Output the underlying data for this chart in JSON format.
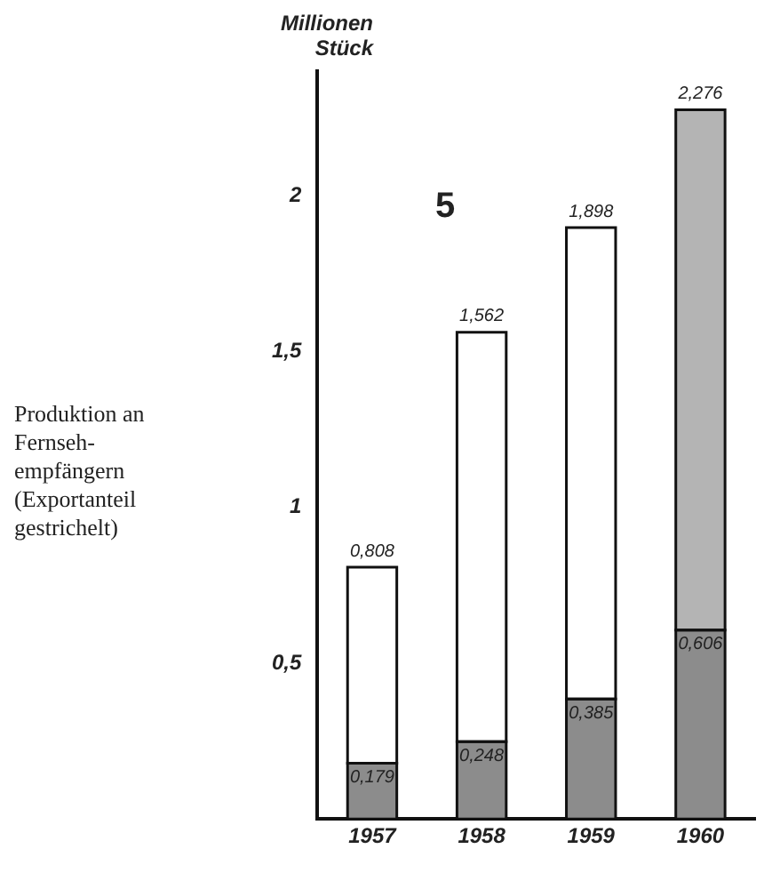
{
  "chart_data": {
    "type": "bar",
    "stacked": true,
    "ylabel": "Millionen Stück",
    "categories": [
      "1957",
      "1958",
      "1959",
      "1960"
    ],
    "series": [
      {
        "values": [
          0.179,
          0.248,
          0.385,
          0.606
        ],
        "color": "#8c8c8c",
        "value_labels": [
          "0,179",
          "0,248",
          "0,385",
          "0,606"
        ]
      },
      {
        "values": [
          0.629,
          1.314,
          1.513,
          1.67
        ],
        "colors": [
          "#ffffff",
          "#ffffff",
          "#ffffff",
          "#b4b4b4"
        ]
      }
    ],
    "totals": [
      "0,808",
      "1,562",
      "1,898",
      "2,276"
    ],
    "ylim": [
      0,
      2.4
    ],
    "yticks": [
      {
        "value": 0.5,
        "label": "0,5"
      },
      1,
      {
        "value": 1.5,
        "label": "1,5"
      },
      2
    ],
    "grid": false,
    "legend": false,
    "annotations": [
      "5",
      "Produktion an Fernseh-empfängern (Exportanteil gestrichelt)"
    ]
  }
}
